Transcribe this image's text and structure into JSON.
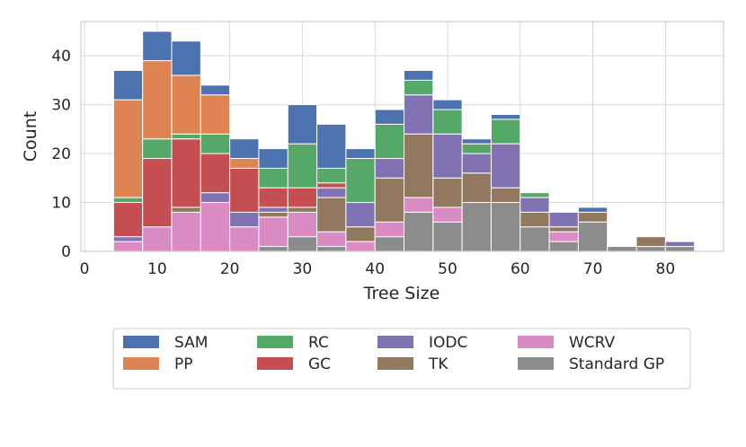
{
  "chart_data": {
    "type": "bar",
    "stacked": true,
    "title": "",
    "xlabel": "Tree Size",
    "ylabel": "Count",
    "xlim": [
      -0.5,
      88
    ],
    "ylim": [
      0,
      47
    ],
    "x_ticks": [
      0,
      10,
      20,
      30,
      40,
      50,
      60,
      70,
      80
    ],
    "y_ticks": [
      0,
      10,
      20,
      30,
      40
    ],
    "grid": true,
    "legend_position": "bottom-center",
    "bin_width": 4,
    "bin_starts": [
      4,
      8,
      12,
      16,
      20,
      24,
      28,
      32,
      36,
      40,
      44,
      48,
      52,
      56,
      60,
      64,
      68,
      72,
      76,
      80
    ],
    "series": [
      {
        "name": "Standard GP",
        "color": "#8c8c8c",
        "values": [
          0,
          0,
          0,
          0,
          0,
          1,
          3,
          1,
          0,
          3,
          8,
          6,
          10,
          10,
          5,
          2,
          6,
          1,
          1,
          1
        ]
      },
      {
        "name": "WCRV",
        "color": "#da8bc3",
        "values": [
          2,
          5,
          8,
          10,
          5,
          6,
          5,
          3,
          2,
          3,
          3,
          3,
          0,
          0,
          0,
          2,
          0,
          0,
          0,
          0
        ]
      },
      {
        "name": "TK",
        "color": "#937860",
        "values": [
          0,
          0,
          1,
          0,
          0,
          1,
          1,
          7,
          3,
          9,
          13,
          6,
          6,
          3,
          3,
          1,
          2,
          0,
          2,
          0
        ]
      },
      {
        "name": "IODC",
        "color": "#8172b3",
        "values": [
          1,
          0,
          0,
          2,
          3,
          1,
          0,
          2,
          5,
          4,
          8,
          9,
          4,
          9,
          3,
          3,
          0,
          0,
          0,
          1
        ]
      },
      {
        "name": "GC",
        "color": "#c44e52",
        "values": [
          7,
          14,
          14,
          8,
          9,
          4,
          4,
          1,
          0,
          0,
          0,
          0,
          0,
          0,
          0,
          0,
          0,
          0,
          0,
          0
        ]
      },
      {
        "name": "RC",
        "color": "#55a868",
        "values": [
          1,
          4,
          1,
          4,
          0,
          4,
          9,
          3,
          9,
          7,
          3,
          5,
          2,
          5,
          1,
          0,
          0,
          0,
          0,
          0
        ]
      },
      {
        "name": "PP",
        "color": "#dd8452",
        "values": [
          20,
          16,
          12,
          8,
          2,
          0,
          0,
          0,
          0,
          0,
          0,
          0,
          0,
          0,
          0,
          0,
          0,
          0,
          0,
          0
        ]
      },
      {
        "name": "SAM",
        "color": "#4c72b0",
        "values": [
          6,
          6,
          7,
          2,
          4,
          4,
          8,
          9,
          2,
          3,
          2,
          2,
          1,
          1,
          0,
          0,
          1,
          0,
          0,
          0
        ]
      }
    ],
    "legend_items": [
      {
        "name": "SAM",
        "color": "#4c72b0"
      },
      {
        "name": "PP",
        "color": "#dd8452"
      },
      {
        "name": "RC",
        "color": "#55a868"
      },
      {
        "name": "GC",
        "color": "#c44e52"
      },
      {
        "name": "IODC",
        "color": "#8172b3"
      },
      {
        "name": "TK",
        "color": "#937860"
      },
      {
        "name": "WCRV",
        "color": "#da8bc3"
      },
      {
        "name": "Standard GP",
        "color": "#8c8c8c"
      }
    ]
  }
}
